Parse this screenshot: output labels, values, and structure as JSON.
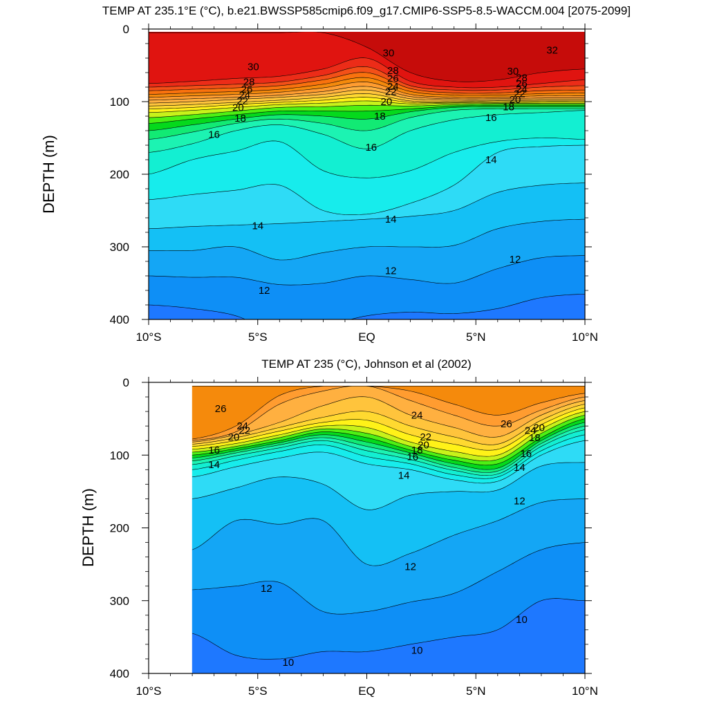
{
  "chart_data": [
    {
      "type": "contour",
      "title": "TEMP AT 235.1°E (°C), b.e21.BWSSP585cmip6.f09_g17.CMIP6-SSP5-8.5-WACCM.004 [2075-2099]",
      "ylabel": "DEPTH (m)",
      "xlabel": "",
      "xlim": [
        -10,
        10
      ],
      "ylim": [
        0,
        400
      ],
      "y_reversed": true,
      "x_ticks": [
        -10,
        -5,
        0,
        5,
        10
      ],
      "x_tick_labels": [
        "10°S",
        "5°S",
        "EQ",
        "5°N",
        "10°N"
      ],
      "y_ticks": [
        0,
        100,
        200,
        300,
        400
      ],
      "y_tick_labels": [
        "0",
        "100",
        "200",
        "300",
        "400"
      ],
      "data_xlim": [
        -10,
        10
      ],
      "contour_interval": 1,
      "isotherm_depths": {
        "lat": [
          -10,
          -8,
          -6,
          -4,
          -2,
          0,
          2,
          4,
          6,
          8,
          10
        ],
        "levels": [
          {
            "t": 31,
            "depth": [
              5,
              5,
              5,
              5,
              5,
              25,
              60,
              72,
              70,
              60,
              55
            ]
          },
          {
            "t": 30,
            "depth": [
              75,
              72,
              68,
              65,
              55,
              40,
              72,
              80,
              80,
              75,
              70
            ]
          },
          {
            "t": 29,
            "depth": [
              80,
              78,
              76,
              73,
              64,
              52,
              78,
              84,
              84,
              80,
              78
            ]
          },
          {
            "t": 28,
            "depth": [
              85,
              83,
              81,
              78,
              70,
              60,
              82,
              88,
              88,
              85,
              84
            ]
          },
          {
            "t": 27,
            "depth": [
              90,
              88,
              86,
              83,
              76,
              67,
              86,
              91,
              91,
              89,
              88
            ]
          },
          {
            "t": 26,
            "depth": [
              94,
              92,
              90,
              87,
              81,
              73,
              90,
              94,
              94,
              92,
              92
            ]
          },
          {
            "t": 25,
            "depth": [
              98,
              96,
              94,
              91,
              86,
              79,
              93,
              96,
              96,
              95,
              95
            ]
          },
          {
            "t": 24,
            "depth": [
              102,
              100,
              97,
              94,
              90,
              84,
              96,
              98,
              98,
              97,
              97
            ]
          },
          {
            "t": 23,
            "depth": [
              106,
              104,
              101,
              98,
              94,
              89,
              99,
              100,
              99,
              99,
              99
            ]
          },
          {
            "t": 22,
            "depth": [
              110,
              108,
              104,
              101,
              98,
              94,
              101,
              101,
              101,
              100,
              100
            ]
          },
          {
            "t": 21,
            "depth": [
              115,
              112,
              108,
              104,
              102,
              99,
              103,
              102,
              102,
              102,
              102
            ]
          },
          {
            "t": 20,
            "depth": [
              122,
              118,
              113,
              108,
              107,
              105,
              106,
              104,
              103,
              103,
              103
            ]
          },
          {
            "t": 19,
            "depth": [
              130,
              124,
              118,
              113,
              113,
              113,
              110,
              106,
              105,
              105,
              105
            ]
          },
          {
            "t": 18,
            "depth": [
              140,
              132,
              124,
              118,
              120,
              124,
              114,
              108,
              107,
              107,
              107
            ]
          },
          {
            "t": 17,
            "depth": [
              152,
              142,
              130,
              124,
              130,
              140,
              122,
              112,
              110,
              110,
              110
            ]
          },
          {
            "t": 16,
            "depth": [
              170,
              158,
              140,
              132,
              145,
              165,
              140,
              125,
              118,
              115,
              112
            ]
          },
          {
            "t": 15,
            "depth": [
              200,
              180,
              168,
              155,
              195,
              205,
              195,
              170,
              155,
              150,
              152
            ]
          },
          {
            "t": 14,
            "depth": [
              235,
              228,
              222,
              215,
              250,
              255,
              240,
              215,
              170,
              162,
              160
            ]
          },
          {
            "t": 13,
            "depth": [
              275,
              272,
              270,
              268,
              265,
              262,
              258,
              250,
              225,
              215,
              212
            ]
          },
          {
            "t": 12,
            "depth": [
              305,
              305,
              300,
              318,
              308,
              300,
              300,
              298,
              275,
              265,
              262
            ]
          },
          {
            "t": 11,
            "depth": [
              340,
              342,
              342,
              352,
              350,
              340,
              345,
              350,
              330,
              315,
              312
            ]
          },
          {
            "t": 10,
            "depth": [
              380,
              385,
              395,
              420,
              410,
              395,
              390,
              392,
              385,
              370,
              365
            ]
          }
        ]
      },
      "contour_labels": [
        {
          "text": "30",
          "lat": -5.2,
          "depth": 52
        },
        {
          "text": "28",
          "lat": -5.4,
          "depth": 73
        },
        {
          "text": "26",
          "lat": -5.5,
          "depth": 83
        },
        {
          "text": "24",
          "lat": -5.6,
          "depth": 91
        },
        {
          "text": "22",
          "lat": -5.7,
          "depth": 99
        },
        {
          "text": "20",
          "lat": -5.9,
          "depth": 108
        },
        {
          "text": "18",
          "lat": -5.8,
          "depth": 123
        },
        {
          "text": "16",
          "lat": -7.0,
          "depth": 145
        },
        {
          "text": "30",
          "lat": 1.0,
          "depth": 33
        },
        {
          "text": "28",
          "lat": 1.2,
          "depth": 57
        },
        {
          "text": "26",
          "lat": 1.2,
          "depth": 68
        },
        {
          "text": "24",
          "lat": 1.2,
          "depth": 79
        },
        {
          "text": "22",
          "lat": 1.1,
          "depth": 86
        },
        {
          "text": "20",
          "lat": 0.9,
          "depth": 100
        },
        {
          "text": "18",
          "lat": 0.6,
          "depth": 120
        },
        {
          "text": "16",
          "lat": 0.2,
          "depth": 163
        },
        {
          "text": "32",
          "lat": 8.5,
          "depth": 29
        },
        {
          "text": "30",
          "lat": 6.7,
          "depth": 58
        },
        {
          "text": "28",
          "lat": 7.1,
          "depth": 67
        },
        {
          "text": "26",
          "lat": 7.1,
          "depth": 75
        },
        {
          "text": "24",
          "lat": 7.1,
          "depth": 83
        },
        {
          "text": "22",
          "lat": 7.0,
          "depth": 89
        },
        {
          "text": "20",
          "lat": 6.8,
          "depth": 97
        },
        {
          "text": "18",
          "lat": 6.5,
          "depth": 107
        },
        {
          "text": "16",
          "lat": 5.7,
          "depth": 122
        },
        {
          "text": "14",
          "lat": 5.7,
          "depth": 180
        },
        {
          "text": "14",
          "lat": -5.0,
          "depth": 271
        },
        {
          "text": "14",
          "lat": 1.1,
          "depth": 262
        },
        {
          "text": "12",
          "lat": -4.7,
          "depth": 360
        },
        {
          "text": "12",
          "lat": 1.1,
          "depth": 333
        },
        {
          "text": "12",
          "lat": 6.8,
          "depth": 317
        }
      ]
    },
    {
      "type": "contour",
      "title": "TEMP AT 235 (°C), Johnson et al (2002)",
      "ylabel": "DEPTH (m)",
      "xlabel": "",
      "xlim": [
        -10,
        10
      ],
      "ylim": [
        0,
        400
      ],
      "y_reversed": true,
      "x_ticks": [
        -10,
        -5,
        0,
        5,
        10
      ],
      "x_tick_labels": [
        "10°S",
        "5°S",
        "EQ",
        "5°N",
        "10°N"
      ],
      "y_ticks": [
        0,
        100,
        200,
        300,
        400
      ],
      "y_tick_labels": [
        "0",
        "100",
        "200",
        "300",
        "400"
      ],
      "data_xlim": [
        -8,
        10
      ],
      "contour_interval": 1,
      "isotherm_depths": {
        "lat": [
          -8,
          -6,
          -4,
          -2,
          0,
          2,
          4,
          6,
          8,
          10
        ],
        "levels": [
          {
            "t": 27,
            "depth": [
              5,
              5,
              5,
              5,
              5,
              5,
              5,
              5,
              5,
              5
            ]
          },
          {
            "t": 26,
            "depth": [
              78,
              60,
              18,
              5,
              5,
              12,
              30,
              45,
              28,
              15
            ]
          },
          {
            "t": 25,
            "depth": [
              80,
              68,
              30,
              12,
              5,
              25,
              45,
              60,
              38,
              20
            ]
          },
          {
            "t": 24,
            "depth": [
              82,
              72,
              55,
              32,
              20,
              45,
              62,
              75,
              45,
              25
            ]
          },
          {
            "t": 23,
            "depth": [
              85,
              76,
              62,
              48,
              40,
              60,
              75,
              85,
              52,
              30
            ]
          },
          {
            "t": 22,
            "depth": [
              88,
              80,
              67,
              55,
              52,
              72,
              85,
              92,
              58,
              35
            ]
          },
          {
            "t": 21,
            "depth": [
              92,
              84,
              72,
              60,
              62,
              82,
              95,
              100,
              64,
              40
            ]
          },
          {
            "t": 20,
            "depth": [
              96,
              88,
              76,
              64,
              70,
              88,
              102,
              106,
              70,
              45
            ]
          },
          {
            "t": 19,
            "depth": [
              100,
              91,
              80,
              68,
              76,
              93,
              107,
              112,
              76,
              50
            ]
          },
          {
            "t": 18,
            "depth": [
              104,
              94,
              83,
              72,
              82,
              97,
              112,
              118,
              80,
              55
            ]
          },
          {
            "t": 17,
            "depth": [
              108,
              97,
              86,
              76,
              88,
              101,
              117,
              122,
              84,
              60
            ]
          },
          {
            "t": 16,
            "depth": [
              113,
              101,
              90,
              80,
              94,
              106,
              121,
              126,
              88,
              65
            ]
          },
          {
            "t": 15,
            "depth": [
              120,
              107,
              95,
              86,
              102,
              112,
              127,
              130,
              94,
              72
            ]
          },
          {
            "t": 14,
            "depth": [
              130,
              116,
              104,
              96,
              112,
              120,
              134,
              136,
              100,
              80
            ]
          },
          {
            "t": 13,
            "depth": [
              160,
              145,
              130,
              140,
              175,
              155,
              150,
              148,
              115,
              110
            ]
          },
          {
            "t": 12,
            "depth": [
              230,
              190,
              195,
              190,
              250,
              235,
              210,
              190,
              165,
              160
            ]
          },
          {
            "t": 11,
            "depth": [
              285,
              280,
              275,
              315,
              315,
              302,
              290,
              260,
              230,
              220
            ]
          },
          {
            "t": 10,
            "depth": [
              345,
              375,
              380,
              370,
              370,
              360,
              350,
              340,
              300,
              300
            ]
          }
        ]
      },
      "contour_labels": [
        {
          "text": "26",
          "lat": -6.7,
          "depth": 36
        },
        {
          "text": "24",
          "lat": -5.7,
          "depth": 60
        },
        {
          "text": "22",
          "lat": -5.6,
          "depth": 66
        },
        {
          "text": "20",
          "lat": -6.1,
          "depth": 75
        },
        {
          "text": "16",
          "lat": -7.0,
          "depth": 93
        },
        {
          "text": "14",
          "lat": -7.0,
          "depth": 113
        },
        {
          "text": "24",
          "lat": 2.3,
          "depth": 45
        },
        {
          "text": "22",
          "lat": 2.7,
          "depth": 75
        },
        {
          "text": "20",
          "lat": 2.6,
          "depth": 86
        },
        {
          "text": "18",
          "lat": 2.3,
          "depth": 93
        },
        {
          "text": "16",
          "lat": 2.1,
          "depth": 102
        },
        {
          "text": "14",
          "lat": 1.7,
          "depth": 128
        },
        {
          "text": "26",
          "lat": 6.4,
          "depth": 57
        },
        {
          "text": "24",
          "lat": 7.5,
          "depth": 66
        },
        {
          "text": "20",
          "lat": 7.9,
          "depth": 62
        },
        {
          "text": "18",
          "lat": 7.7,
          "depth": 76
        },
        {
          "text": "16",
          "lat": 7.3,
          "depth": 98
        },
        {
          "text": "14",
          "lat": 7.0,
          "depth": 117
        },
        {
          "text": "12",
          "lat": 7.0,
          "depth": 163
        },
        {
          "text": "12",
          "lat": 2.0,
          "depth": 253
        },
        {
          "text": "12",
          "lat": -4.6,
          "depth": 283
        },
        {
          "text": "10",
          "lat": 7.1,
          "depth": 326
        },
        {
          "text": "10",
          "lat": 2.3,
          "depth": 368
        },
        {
          "text": "10",
          "lat": -3.6,
          "depth": 385
        }
      ]
    }
  ],
  "palette": {
    "9": "#1e78ff",
    "10": "#0e8ff6",
    "11": "#14a6f5",
    "12": "#14c0f5",
    "13": "#2edbf6",
    "14": "#17ecec",
    "15": "#13efd2",
    "16": "#1cf3b2",
    "17": "#12ea74",
    "18": "#05d91c",
    "19": "#4ef014",
    "20": "#c8f21a",
    "21": "#fff218",
    "22": "#ffd930",
    "23": "#ffc43c",
    "24": "#ffb040",
    "25": "#ff9c30",
    "26": "#f58a0c",
    "27": "#f9720e",
    "28": "#f35018",
    "29": "#ec2c18",
    "30": "#e01410",
    "31": "#c60c0a",
    "32": "#a60000"
  }
}
